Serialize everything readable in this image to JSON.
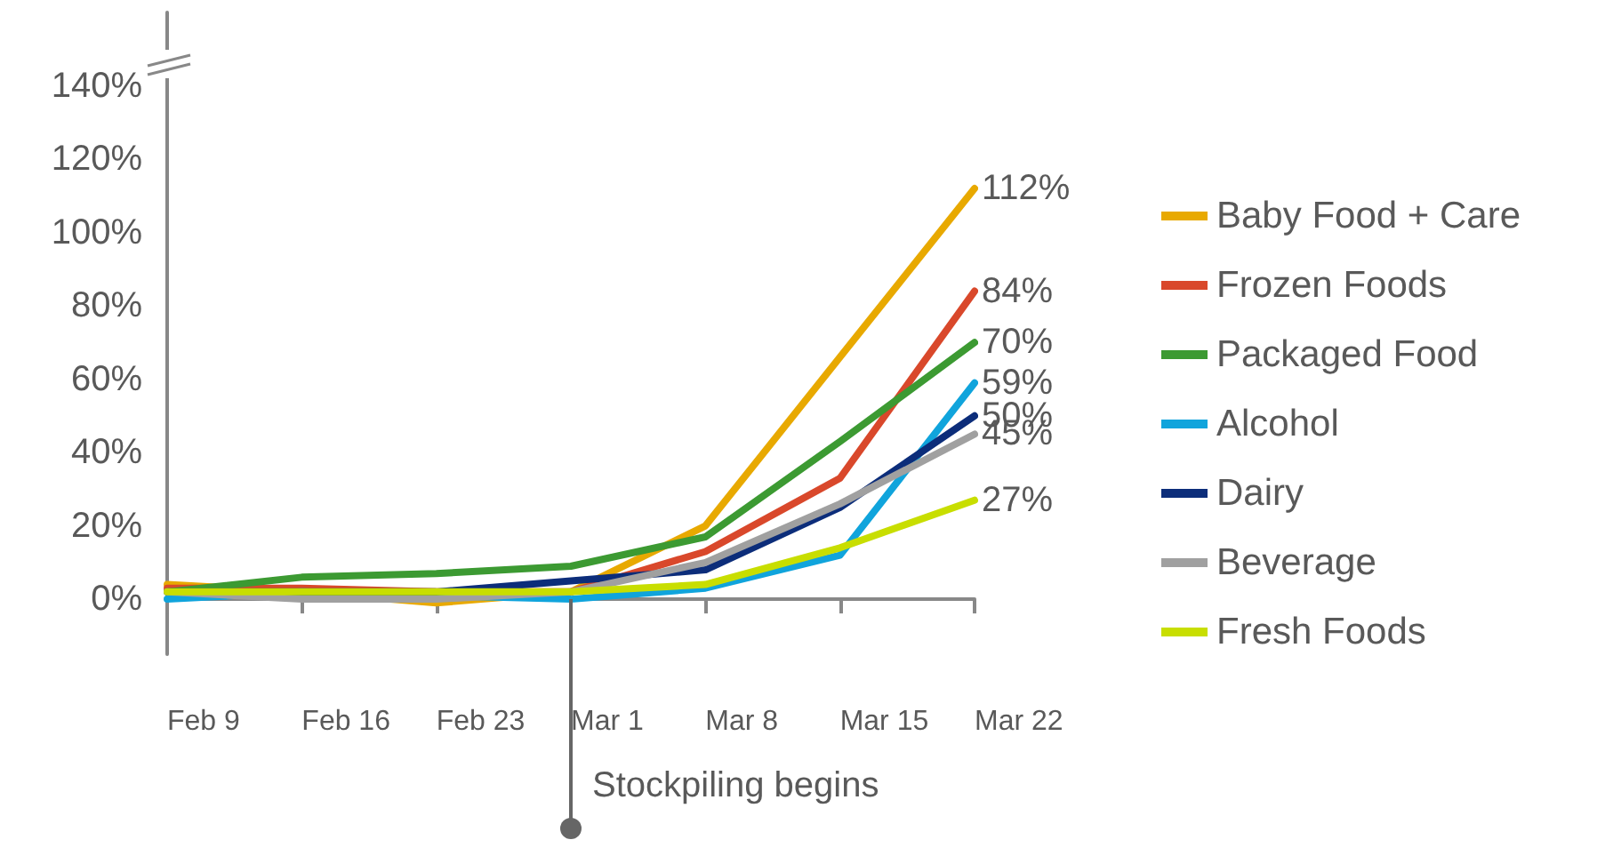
{
  "chart_data": {
    "type": "line",
    "categories": [
      "Feb 9",
      "Feb 16",
      "Feb 23",
      "Mar 1",
      "Mar 8",
      "Mar 15",
      "Mar 22"
    ],
    "series": [
      {
        "name": "Baby Food + Care",
        "color": "#e8a900",
        "values": [
          4,
          2,
          -1,
          2,
          20,
          66,
          112
        ],
        "value_labels": [
          null,
          null,
          null,
          null,
          null,
          null,
          "112%"
        ]
      },
      {
        "name": "Frozen Foods",
        "color": "#d9482b",
        "values": [
          3,
          3,
          2,
          2,
          13,
          33,
          84
        ],
        "value_labels": [
          null,
          null,
          null,
          null,
          null,
          null,
          "84%"
        ]
      },
      {
        "name": "Packaged Food",
        "color": "#3c9a32",
        "values": [
          2,
          6,
          7,
          9,
          17,
          43,
          70
        ],
        "value_labels": [
          null,
          null,
          null,
          null,
          null,
          null,
          "70%"
        ]
      },
      {
        "name": "Alcohol",
        "color": "#10a4dc",
        "values": [
          0,
          2,
          1,
          0,
          3,
          12,
          59
        ],
        "value_labels": [
          null,
          null,
          null,
          null,
          null,
          null,
          "59%"
        ]
      },
      {
        "name": "Dairy",
        "color": "#0c2d7a",
        "values": [
          2,
          2,
          2,
          5,
          8,
          25,
          50
        ],
        "value_labels": [
          null,
          null,
          null,
          null,
          null,
          null,
          "50%"
        ]
      },
      {
        "name": "Beverage",
        "color": "#a0a0a0",
        "values": [
          2,
          0,
          0,
          2,
          10,
          26,
          45
        ],
        "value_labels": [
          null,
          null,
          null,
          null,
          null,
          null,
          "45%"
        ]
      },
      {
        "name": "Fresh Foods",
        "color": "#c8de00",
        "values": [
          2,
          2,
          2,
          2,
          4,
          14,
          27
        ],
        "value_labels": [
          null,
          null,
          null,
          null,
          null,
          null,
          "27%"
        ]
      }
    ],
    "ylim": [
      -15,
      160
    ],
    "yticks": [
      {
        "value": 0,
        "label": "0%"
      },
      {
        "value": 20,
        "label": "20%"
      },
      {
        "value": 40,
        "label": "40%"
      },
      {
        "value": 60,
        "label": "60%"
      },
      {
        "value": 80,
        "label": "80%"
      },
      {
        "value": 100,
        "label": "100%"
      },
      {
        "value": 120,
        "label": "120%"
      },
      {
        "value": 140,
        "label": "140%"
      }
    ],
    "ref_lines": [
      {
        "axis": "x",
        "value": "Mar 1",
        "label": "Stockpiling begins",
        "color": "#666666"
      }
    ],
    "legend": "right",
    "line_style": "solid"
  }
}
